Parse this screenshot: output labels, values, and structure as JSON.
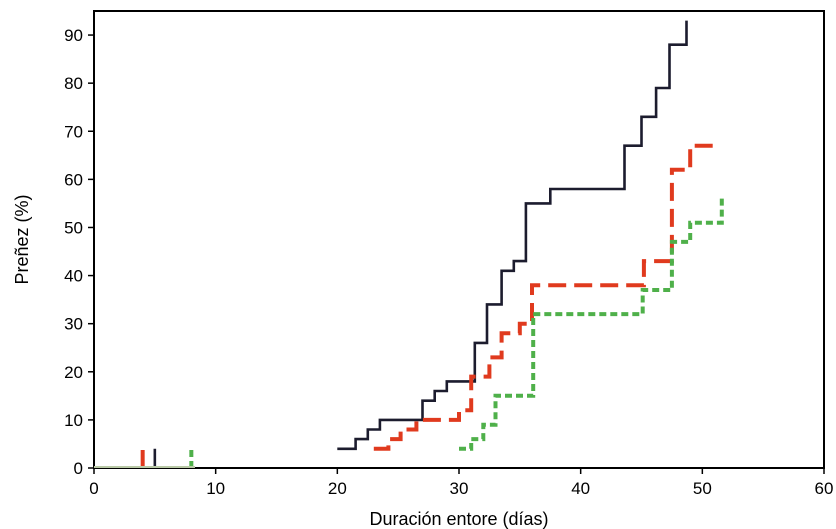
{
  "chart_data": {
    "type": "line",
    "title": "",
    "xlabel": "Duración entore (días)",
    "ylabel": "Preñez (%)",
    "xlim": [
      0,
      60
    ],
    "ylim": [
      0,
      95
    ],
    "x_ticks": [
      0,
      10,
      20,
      30,
      40,
      50,
      60
    ],
    "y_ticks": [
      0,
      10,
      20,
      30,
      40,
      50,
      60,
      70,
      80,
      90
    ],
    "grid": false,
    "legend": "none",
    "step": true,
    "series": [
      {
        "color": "#1c1c2e",
        "dash": "solid",
        "points": [
          [
            20,
            4
          ],
          [
            21.5,
            6
          ],
          [
            22.5,
            8
          ],
          [
            23.5,
            10
          ],
          [
            26.8,
            10
          ],
          [
            27,
            14
          ],
          [
            28,
            16
          ],
          [
            29,
            18
          ],
          [
            30.5,
            18
          ],
          [
            31.3,
            26
          ],
          [
            32.3,
            34
          ],
          [
            33.5,
            41
          ],
          [
            34.5,
            43
          ],
          [
            35.5,
            55
          ],
          [
            37.5,
            58
          ],
          [
            43.5,
            58
          ],
          [
            43.6,
            67
          ],
          [
            45,
            73
          ],
          [
            46.2,
            79
          ],
          [
            47.3,
            88
          ],
          [
            48.7,
            93
          ],
          [
            48.7,
            93
          ]
        ],
        "censor_marks": [
          5
        ]
      },
      {
        "color": "#e03a1e",
        "dash": "dashed",
        "points": [
          [
            23,
            4
          ],
          [
            24.2,
            6
          ],
          [
            25.2,
            8
          ],
          [
            26.5,
            10
          ],
          [
            28.2,
            10
          ],
          [
            30,
            12
          ],
          [
            31,
            19
          ],
          [
            32.5,
            23
          ],
          [
            33.5,
            28
          ],
          [
            35,
            30
          ],
          [
            36,
            38
          ],
          [
            45,
            38
          ],
          [
            45.2,
            43
          ],
          [
            47.5,
            62
          ],
          [
            49,
            67
          ],
          [
            51,
            67
          ]
        ],
        "censor_marks": [
          4
        ]
      },
      {
        "color": "#4fb04a",
        "dash": "dotted",
        "points": [
          [
            30,
            4
          ],
          [
            31,
            6
          ],
          [
            32,
            9
          ],
          [
            33,
            15
          ],
          [
            36,
            15
          ],
          [
            36.1,
            32
          ],
          [
            45,
            32
          ],
          [
            45.1,
            37
          ],
          [
            47.5,
            47
          ],
          [
            49,
            51
          ],
          [
            51.5,
            51
          ],
          [
            51.6,
            56
          ]
        ],
        "censor_marks": [
          8
        ]
      }
    ]
  }
}
